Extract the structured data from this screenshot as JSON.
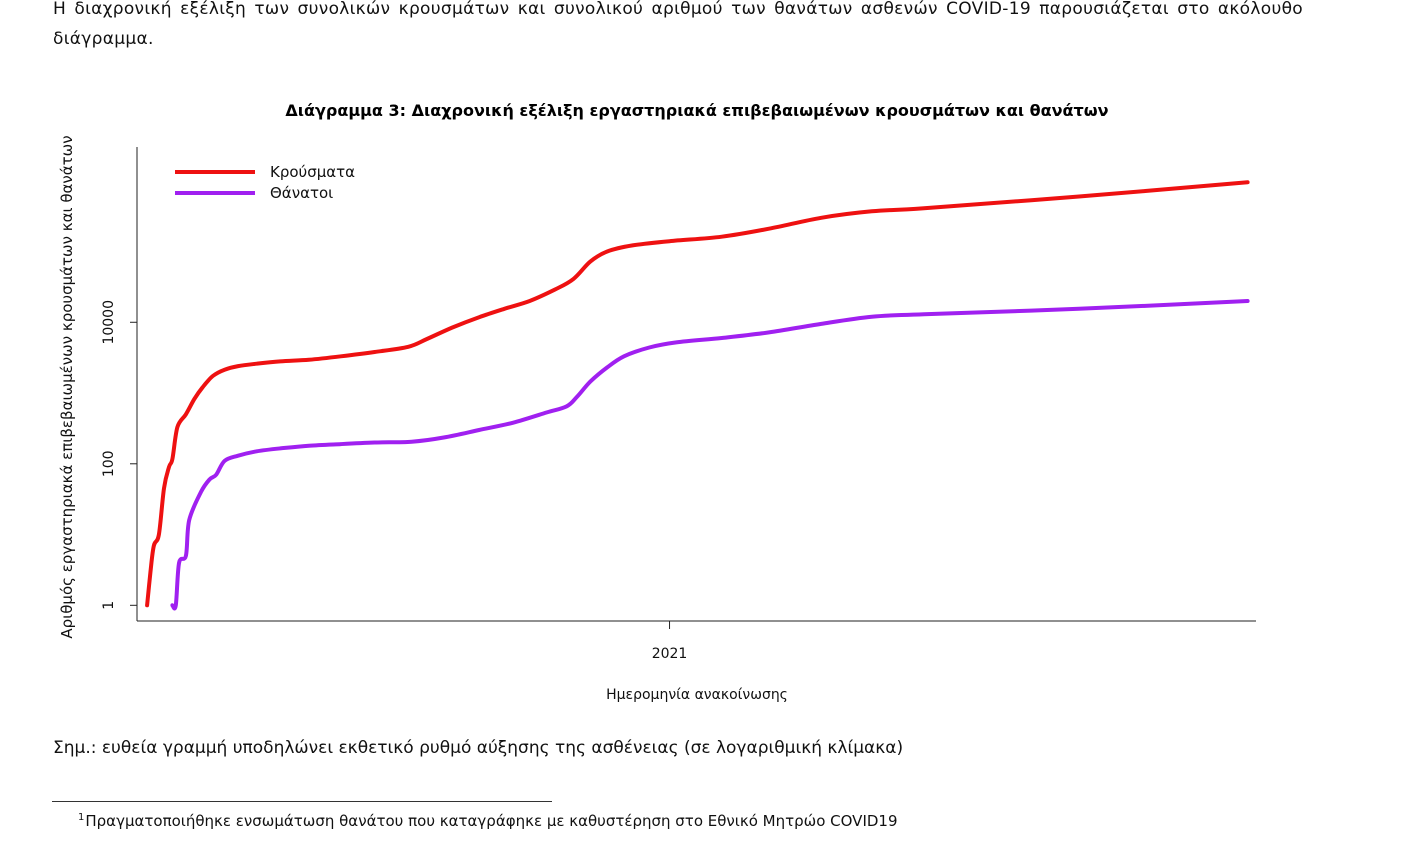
{
  "text": {
    "intro": "Η διαχρονική εξέλιξη των συνολικών κρουσμάτων και συνολικού αριθμού των θανάτων ασθενών COVID-19 παρουσιάζεται στο ακόλουθο διάγραμμα.",
    "note": "Σημ.: ευθεία γραμμή υποδηλώνει εκθετικό ρυθμό αύξησης της ασθένειας (σε λογαριθμική κλίμακα)",
    "footnote_mark": "1",
    "footnote": "Πραγματοποιήθηκε ενσωμάτωση θανάτου που καταγράφηκε με καθυστέρηση στο Εθνικό Μητρώο COVID19"
  },
  "chart_data": {
    "type": "line",
    "title": "Διάγραμμα 3: Διαχρονική εξέλιξη εργαστηριακά επιβεβαιωμένων κρουσμάτων και θανάτων",
    "xlabel": "Ημερομηνία ανακοίνωσης",
    "ylabel": "Αριθμός εργαστηριακά επιβεβαιωμένων κρουσμάτων και θανάτων",
    "y_scale": "log",
    "y_ticks": [
      1,
      100,
      10000
    ],
    "y_tick_labels": [
      "1",
      "100",
      "10000"
    ],
    "ylim": [
      0.6,
      3000000
    ],
    "x_type": "date",
    "xlim": [
      "2020-02-20",
      "2021-12-15"
    ],
    "x_ticks": [
      "2021-01-01"
    ],
    "x_tick_labels": [
      "2021"
    ],
    "legend": "top-left",
    "grid": false,
    "series": [
      {
        "name": "Κρούσματα",
        "color": "#ee1111",
        "points": [
          [
            "2020-02-26",
            1
          ],
          [
            "2020-02-28",
            3
          ],
          [
            "2020-03-01",
            7
          ],
          [
            "2020-03-04",
            10
          ],
          [
            "2020-03-07",
            45
          ],
          [
            "2020-03-10",
            90
          ],
          [
            "2020-03-12",
            117
          ],
          [
            "2020-03-15",
            330
          ],
          [
            "2020-03-20",
            500
          ],
          [
            "2020-03-25",
            820
          ],
          [
            "2020-03-30",
            1210
          ],
          [
            "2020-04-05",
            1740
          ],
          [
            "2020-04-12",
            2140
          ],
          [
            "2020-04-20",
            2400
          ],
          [
            "2020-05-01",
            2600
          ],
          [
            "2020-05-15",
            2800
          ],
          [
            "2020-06-01",
            2950
          ],
          [
            "2020-06-20",
            3300
          ],
          [
            "2020-07-10",
            3800
          ],
          [
            "2020-07-30",
            4500
          ],
          [
            "2020-08-10",
            5800
          ],
          [
            "2020-08-25",
            8400
          ],
          [
            "2020-09-10",
            11800
          ],
          [
            "2020-09-25",
            15500
          ],
          [
            "2020-10-10",
            20000
          ],
          [
            "2020-10-25",
            29000
          ],
          [
            "2020-11-05",
            41000
          ],
          [
            "2020-11-15",
            72000
          ],
          [
            "2020-11-25",
            100000
          ],
          [
            "2020-12-10",
            122000
          ],
          [
            "2021-01-01",
            140000
          ],
          [
            "2021-02-01",
            162000
          ],
          [
            "2021-03-01",
            210000
          ],
          [
            "2021-04-01",
            300000
          ],
          [
            "2021-05-01",
            370000
          ],
          [
            "2021-06-01",
            410000
          ],
          [
            "2021-09-01",
            600000
          ],
          [
            "2021-12-10",
            950000
          ]
        ]
      },
      {
        "name": "Θάνατοι",
        "color": "#a020f0",
        "points": [
          [
            "2020-03-12",
            1
          ],
          [
            "2020-03-14",
            1
          ],
          [
            "2020-03-16",
            4
          ],
          [
            "2020-03-20",
            5
          ],
          [
            "2020-03-22",
            16
          ],
          [
            "2020-03-29",
            40
          ],
          [
            "2020-04-03",
            60
          ],
          [
            "2020-04-07",
            70
          ],
          [
            "2020-04-12",
            110
          ],
          [
            "2020-04-20",
            130
          ],
          [
            "2020-05-01",
            150
          ],
          [
            "2020-05-15",
            165
          ],
          [
            "2020-06-01",
            180
          ],
          [
            "2020-06-20",
            190
          ],
          [
            "2020-07-10",
            200
          ],
          [
            "2020-08-01",
            205
          ],
          [
            "2020-08-20",
            235
          ],
          [
            "2020-09-10",
            300
          ],
          [
            "2020-09-30",
            380
          ],
          [
            "2020-10-20",
            530
          ],
          [
            "2020-11-01",
            650
          ],
          [
            "2020-11-07",
            880
          ],
          [
            "2020-11-15",
            1450
          ],
          [
            "2020-11-25",
            2300
          ],
          [
            "2020-12-05",
            3300
          ],
          [
            "2020-12-20",
            4400
          ],
          [
            "2021-01-05",
            5200
          ],
          [
            "2021-02-01",
            6000
          ],
          [
            "2021-03-01",
            7200
          ],
          [
            "2021-04-01",
            9500
          ],
          [
            "2021-05-01",
            12000
          ],
          [
            "2021-06-01",
            13000
          ],
          [
            "2021-09-01",
            15500
          ],
          [
            "2021-12-10",
            20000
          ]
        ]
      }
    ]
  }
}
